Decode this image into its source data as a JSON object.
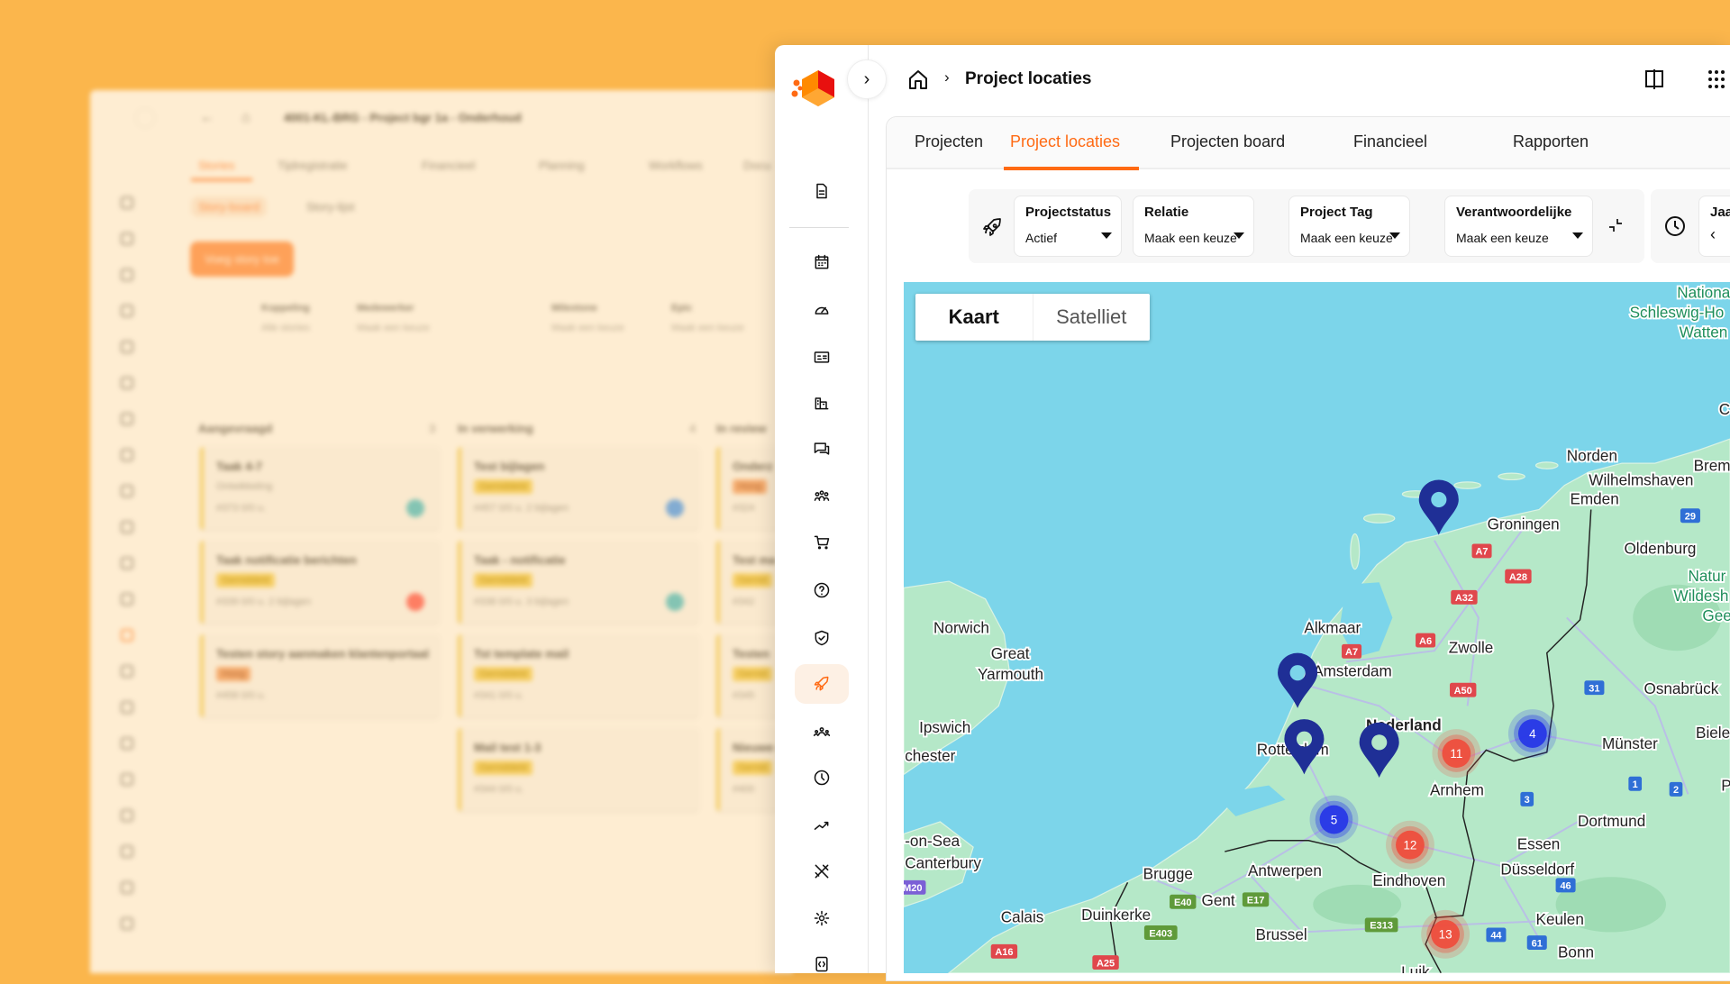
{
  "colors": {
    "accent": "#ff6a13",
    "background": "#fbb64c",
    "pin": "#1f2f96",
    "cluster_blue": "#2433e8",
    "cluster_red": "#f04a3a",
    "sea": "#7cd5ea",
    "land": "#b5e8c8"
  },
  "back_window": {
    "breadcrumb": "4001-KL-BRG - Project bgr 1a - Onderhoud",
    "tabs": [
      "Stories",
      "Tijdregistratie",
      "Financieel",
      "Planning",
      "Workflows",
      "Docu"
    ],
    "subtabs": [
      "Story-board",
      "Story-lijst"
    ],
    "add_button": "Voeg story toe",
    "filters": [
      {
        "label": "Koppeling",
        "value": "Alle stories"
      },
      {
        "label": "Medewerker",
        "value": "Maak een keuze"
      },
      {
        "label": "Milestone",
        "value": "Maak een keuze"
      },
      {
        "label": "Epic",
        "value": "Maak een keuze"
      }
    ],
    "columns": [
      {
        "title": "Aangevraagd",
        "count": "3",
        "cards": [
          {
            "title": "Taak 4-7",
            "tag": "Ontwikkeling",
            "meta": "#373   0/0 u.",
            "avatar": "SC"
          },
          {
            "title": "Taak notificatie berichten",
            "tag": "Gemiddeld",
            "meta": "#339   0/0 u.   2 bijlagen",
            "avatar": "PM"
          },
          {
            "title": "Testen story aanmaken klantenportaal",
            "tag": "Hoog",
            "meta": "#458   0/0 u."
          }
        ]
      },
      {
        "title": "In verwerking",
        "count": "4",
        "cards": [
          {
            "title": "Test bijlagen",
            "tag": "Gemiddeld",
            "meta": "#457   0/0 u.   2 bijlagen",
            "avatar": "KD"
          },
          {
            "title": "Taak - notificatie",
            "tag": "Gemiddeld",
            "meta": "#338   0/0 u.   3 bijlagen",
            "avatar": "TT"
          },
          {
            "title": "Tst template mail",
            "tag": "Gemiddeld",
            "meta": "#341   0/0 u."
          },
          {
            "title": "Mail test 1-3",
            "tag": "Gemiddeld",
            "meta": "#344   0/0 u."
          }
        ]
      },
      {
        "title": "In review",
        "cards": [
          {
            "title": "Onderz",
            "tag": "Hoog",
            "meta": "#324"
          },
          {
            "title": "Test ma",
            "tag": "Gemid",
            "meta": "#342"
          },
          {
            "title": "Testen",
            "tag": "Gemid",
            "meta": "#345"
          },
          {
            "title": "Nieuwe omgevi",
            "tag": "Gemid",
            "meta": "#400"
          }
        ]
      }
    ]
  },
  "header": {
    "breadcrumb_title": "Project locaties",
    "icons": [
      "home-icon",
      "split-view-icon",
      "apps-grid-icon"
    ]
  },
  "sidebar": {
    "icons": [
      "document",
      "calendar",
      "dashboard",
      "contact-card",
      "buildings",
      "chat",
      "team",
      "cart",
      "help",
      "shield",
      "rocket",
      "users",
      "clock",
      "trend",
      "tools",
      "settings",
      "code"
    ],
    "active": "rocket"
  },
  "tabs": [
    {
      "label": "Projecten"
    },
    {
      "label": "Project locaties",
      "active": true
    },
    {
      "label": "Projecten board"
    },
    {
      "label": "Financieel"
    },
    {
      "label": "Rapporten"
    }
  ],
  "filters": [
    {
      "label": "Projectstatus",
      "value": "Actief"
    },
    {
      "label": "Relatie",
      "value": "Maak een keuze"
    },
    {
      "label": "Project Tag",
      "value": "Maak een keuze"
    },
    {
      "label": "Verantwoordelijke",
      "value": "Maak een keuze"
    }
  ],
  "period_filter": {
    "label": "Jaa",
    "prev": "‹"
  },
  "map": {
    "type_buttons": {
      "map": "Kaart",
      "satellite": "Satelliet",
      "selected": "Kaart"
    },
    "labels": [
      "Nationa",
      "Schleswig-Ho",
      "Watten",
      "C",
      "Norden",
      "Wilhelmshaven",
      "Emden",
      "Brem",
      "Groningen",
      "Oldenburg",
      "Natur",
      "Wildesh",
      "Gee",
      "Norwich",
      "Great",
      "Yarmouth",
      "Alkmaar",
      "Amsterdam",
      "Zwolle",
      "Osnabrück",
      "Nederland",
      "Ipswich",
      "chester",
      "Rotterdam",
      "Arnhem",
      "Münster",
      "Biele",
      "P",
      "-on-Sea",
      "Canterbury",
      "Dortmund",
      "Essen",
      "Eindhoven",
      "Düsseldorf",
      "Antwerpen",
      "Brugge",
      "Gent",
      "Calais",
      "Duinkerke",
      "Keulen",
      "Brussel",
      "Bonn",
      "Luik"
    ],
    "road_shields": [
      "A7",
      "A28",
      "A32",
      "A6",
      "A7",
      "A50",
      "29",
      "31",
      "1",
      "2",
      "3",
      "46",
      "44",
      "61",
      "E40",
      "E17",
      "E403",
      "E313",
      "A16",
      "A25",
      "M20"
    ],
    "clusters": [
      {
        "count": "4",
        "color": "blue"
      },
      {
        "count": "5",
        "color": "blue"
      },
      {
        "count": "11",
        "color": "red"
      },
      {
        "count": "12",
        "color": "red"
      },
      {
        "count": "13",
        "color": "red"
      }
    ],
    "pins": 4
  }
}
